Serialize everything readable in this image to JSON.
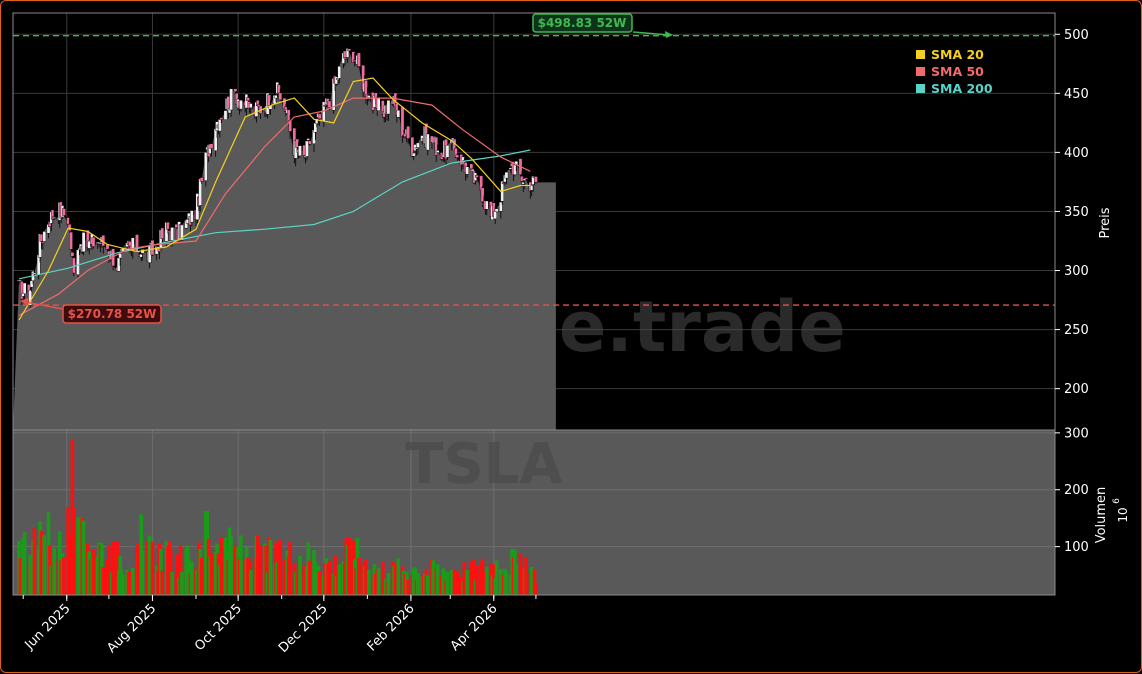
{
  "chart_data": {
    "type": "candlestick",
    "ticker": "TSLA",
    "watermark": "forexsignale.trade",
    "x_tick_labels": [
      "Jun 2025",
      "Aug 2025",
      "Oct 2025",
      "Dec 2025",
      "Feb 2026",
      "Apr 2026"
    ],
    "price_axis": {
      "label": "Preis",
      "ticks": [
        200,
        250,
        300,
        350,
        400,
        450,
        500
      ],
      "ylim": [
        165,
        518
      ]
    },
    "volume_axis": {
      "label": "Volumen",
      "exponent_label": "10",
      "exponent": "6",
      "ticks": [
        100,
        200,
        300
      ],
      "ylim": [
        15,
        305
      ]
    },
    "levels": {
      "high_52w": {
        "value": 498.83,
        "label": "$498.83 52W",
        "color": "#3fb950"
      },
      "low_52w": {
        "value": 270.78,
        "label": "$270.78 52W",
        "color": "#e5534b"
      }
    },
    "legend": [
      {
        "name": "SMA 20",
        "color": "#f5d020"
      },
      {
        "name": "SMA 50",
        "color": "#f06b6b"
      },
      {
        "name": "SMA 200",
        "color": "#5ad3c8"
      }
    ],
    "legend_position": "top-right",
    "grid": true,
    "colors": {
      "up": "#f0f0f0",
      "down": "#f06ba0",
      "volume_up": "#1a9c1a",
      "volume_down": "#ff1010",
      "area": "#595959",
      "panel_bg": "#000000"
    },
    "close_trend": [
      [
        "2025-04-28",
        285
      ],
      [
        "2025-05-05",
        280
      ],
      [
        "2025-05-12",
        320
      ],
      [
        "2025-05-19",
        343
      ],
      [
        "2025-05-26",
        352
      ],
      [
        "2025-06-02",
        345
      ],
      [
        "2025-06-06",
        296
      ],
      [
        "2025-06-09",
        325
      ],
      [
        "2025-06-16",
        322
      ],
      [
        "2025-06-23",
        326
      ],
      [
        "2025-06-30",
        320
      ],
      [
        "2025-07-07",
        305
      ],
      [
        "2025-07-14",
        318
      ],
      [
        "2025-07-21",
        320
      ],
      [
        "2025-07-28",
        312
      ],
      [
        "2025-08-04",
        320
      ],
      [
        "2025-08-11",
        335
      ],
      [
        "2025-08-18",
        330
      ],
      [
        "2025-08-25",
        340
      ],
      [
        "2025-09-01",
        350
      ],
      [
        "2025-09-08",
        395
      ],
      [
        "2025-09-15",
        425
      ],
      [
        "2025-09-22",
        440
      ],
      [
        "2025-09-29",
        450
      ],
      [
        "2025-10-06",
        442
      ],
      [
        "2025-10-13",
        435
      ],
      [
        "2025-10-20",
        440
      ],
      [
        "2025-10-27",
        455
      ],
      [
        "2025-11-03",
        440
      ],
      [
        "2025-11-10",
        405
      ],
      [
        "2025-11-17",
        395
      ],
      [
        "2025-11-24",
        420
      ],
      [
        "2025-12-01",
        435
      ],
      [
        "2025-12-08",
        455
      ],
      [
        "2025-12-15",
        480
      ],
      [
        "2025-12-22",
        485
      ],
      [
        "2025-12-29",
        460
      ],
      [
        "2026-01-05",
        440
      ],
      [
        "2026-01-12",
        435
      ],
      [
        "2026-01-19",
        445
      ],
      [
        "2026-01-26",
        420
      ],
      [
        "2026-02-02",
        405
      ],
      [
        "2026-02-09",
        415
      ],
      [
        "2026-02-16",
        410
      ],
      [
        "2026-02-23",
        400
      ],
      [
        "2026-03-02",
        405
      ],
      [
        "2026-03-09",
        395
      ],
      [
        "2026-03-16",
        380
      ],
      [
        "2026-03-23",
        370
      ],
      [
        "2026-03-30",
        345
      ],
      [
        "2026-04-06",
        365
      ],
      [
        "2026-04-13",
        392
      ],
      [
        "2026-04-20",
        380
      ],
      [
        "2026-04-27",
        375
      ]
    ],
    "sma20": [
      [
        "2025-04-28",
        258
      ],
      [
        "2025-05-19",
        300
      ],
      [
        "2025-06-02",
        336
      ],
      [
        "2025-06-16",
        333
      ],
      [
        "2025-06-30",
        322
      ],
      [
        "2025-07-21",
        316
      ],
      [
        "2025-08-11",
        320
      ],
      [
        "2025-09-01",
        335
      ],
      [
        "2025-09-15",
        375
      ],
      [
        "2025-10-06",
        430
      ],
      [
        "2025-10-27",
        441
      ],
      [
        "2025-11-10",
        446
      ],
      [
        "2025-11-24",
        428
      ],
      [
        "2025-12-08",
        425
      ],
      [
        "2025-12-22",
        460
      ],
      [
        "2026-01-05",
        463
      ],
      [
        "2026-01-19",
        445
      ],
      [
        "2026-02-09",
        425
      ],
      [
        "2026-03-02",
        410
      ],
      [
        "2026-03-16",
        395
      ],
      [
        "2026-04-06",
        367
      ],
      [
        "2026-04-20",
        372
      ],
      [
        "2026-04-27",
        372
      ]
    ],
    "sma50": [
      [
        "2025-04-28",
        262
      ],
      [
        "2025-05-26",
        280
      ],
      [
        "2025-06-16",
        300
      ],
      [
        "2025-07-14",
        318
      ],
      [
        "2025-08-04",
        322
      ],
      [
        "2025-09-01",
        325
      ],
      [
        "2025-09-22",
        365
      ],
      [
        "2025-10-20",
        405
      ],
      [
        "2025-11-10",
        430
      ],
      [
        "2025-12-01",
        435
      ],
      [
        "2025-12-22",
        446
      ],
      [
        "2026-01-19",
        446
      ],
      [
        "2026-02-16",
        440
      ],
      [
        "2026-03-09",
        420
      ],
      [
        "2026-04-06",
        396
      ],
      [
        "2026-04-27",
        384
      ]
    ],
    "sma200": [
      [
        "2025-04-28",
        293
      ],
      [
        "2025-06-02",
        302
      ],
      [
        "2025-07-07",
        315
      ],
      [
        "2025-08-11",
        324
      ],
      [
        "2025-09-15",
        332
      ],
      [
        "2025-10-20",
        335
      ],
      [
        "2025-11-24",
        339
      ],
      [
        "2025-12-22",
        350
      ],
      [
        "2026-01-26",
        375
      ],
      [
        "2026-03-02",
        391
      ],
      [
        "2026-04-06",
        397
      ],
      [
        "2026-04-27",
        402
      ]
    ],
    "volume_trend": [
      [
        "2025-04-28",
        105
      ],
      [
        "2025-05-12",
        110
      ],
      [
        "2025-05-26",
        95
      ],
      [
        "2025-06-02",
        140
      ],
      [
        "2025-06-09",
        115
      ],
      [
        "2025-06-23",
        105
      ],
      [
        "2025-07-07",
        85
      ],
      [
        "2025-07-21",
        80
      ],
      [
        "2025-08-04",
        95
      ],
      [
        "2025-08-18",
        75
      ],
      [
        "2025-09-01",
        80
      ],
      [
        "2025-09-15",
        115
      ],
      [
        "2025-09-29",
        95
      ],
      [
        "2025-10-13",
        90
      ],
      [
        "2025-10-27",
        85
      ],
      [
        "2025-11-10",
        90
      ],
      [
        "2025-11-24",
        85
      ],
      [
        "2025-12-08",
        70
      ],
      [
        "2025-12-22",
        95
      ],
      [
        "2026-01-05",
        65
      ],
      [
        "2026-01-19",
        60
      ],
      [
        "2026-02-02",
        65
      ],
      [
        "2026-02-16",
        60
      ],
      [
        "2026-03-02",
        62
      ],
      [
        "2026-03-16",
        58
      ],
      [
        "2026-03-30",
        70
      ],
      [
        "2026-04-13",
        78
      ],
      [
        "2026-04-27",
        55
      ]
    ],
    "volume_spikes": [
      [
        "2025-06-05",
        288
      ],
      [
        "2025-06-06",
        168
      ],
      [
        "2025-07-24",
        157
      ],
      [
        "2025-09-08",
        162
      ],
      [
        "2025-09-09",
        163
      ],
      [
        "2025-05-19",
        160
      ],
      [
        "2025-12-17",
        115
      ]
    ]
  }
}
